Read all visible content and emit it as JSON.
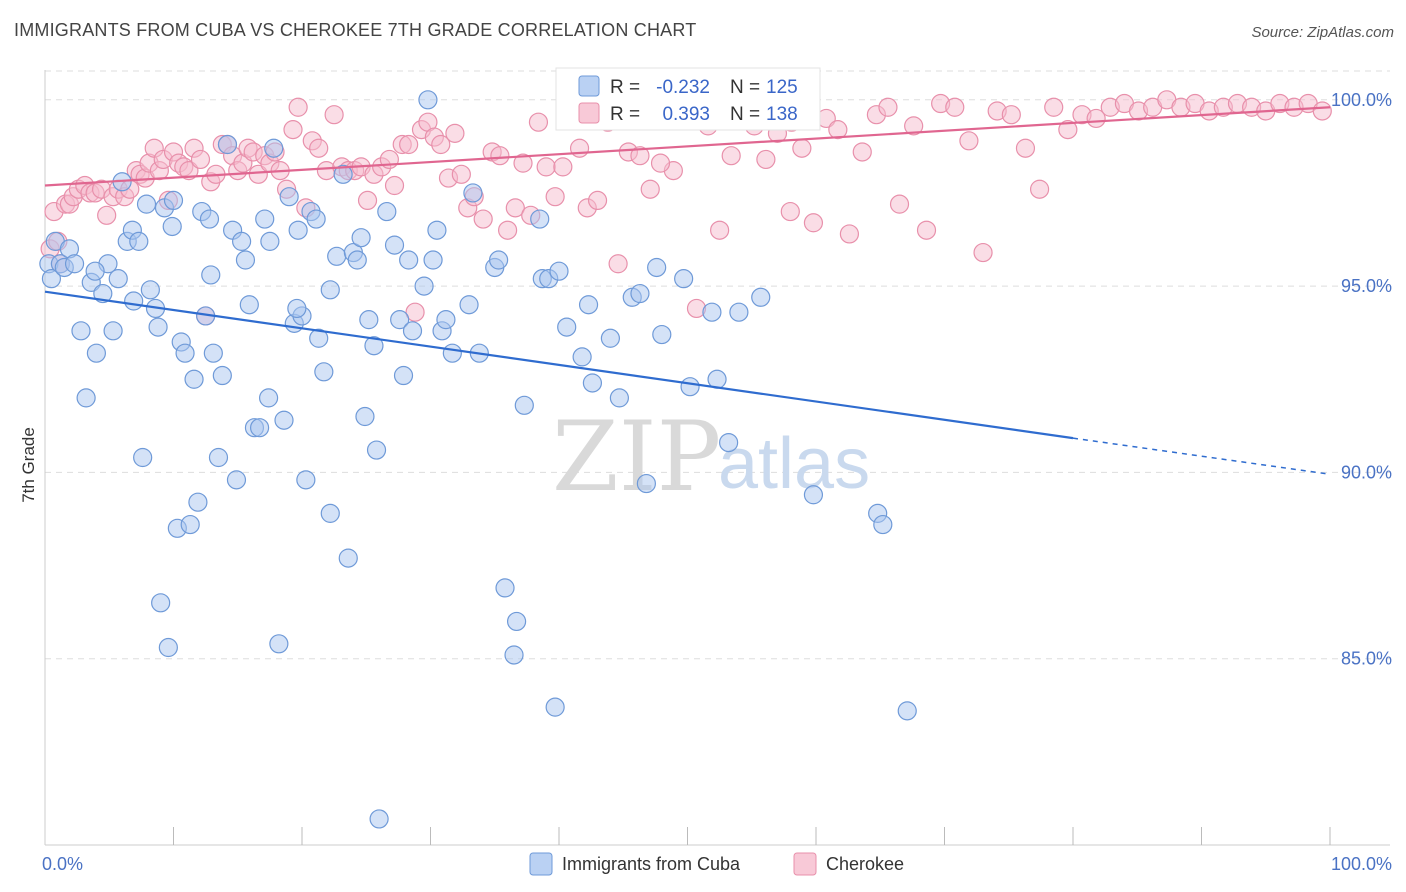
{
  "title": "IMMIGRANTS FROM CUBA VS CHEROKEE 7TH GRADE CORRELATION CHART",
  "source": "Source: ZipAtlas.com",
  "watermark": {
    "zip": "ZIP",
    "atlas": "atlas"
  },
  "colors": {
    "cuba_fill": "#a9c6f0",
    "cuba_stroke": "#6f9ad8",
    "cuba_line": "#2f6ccf",
    "cherokee_fill": "#f6bccd",
    "cherokee_stroke": "#e890ab",
    "cherokee_line": "#e06690",
    "grid": "#dddddd",
    "tick_text": "#4a72c4"
  },
  "chart_data": {
    "type": "scatter",
    "title": "IMMIGRANTS FROM CUBA VS CHEROKEE 7TH GRADE CORRELATION CHART",
    "xlabel": "",
    "ylabel": "7th Grade",
    "xlim": [
      0,
      100
    ],
    "ylim": [
      80,
      100.8
    ],
    "x_tick_labels": [
      "0.0%",
      "100.0%"
    ],
    "y_ticks": [
      85,
      90,
      95,
      100
    ],
    "y_tick_labels": [
      "85.0%",
      "90.0%",
      "95.0%",
      "100.0%"
    ],
    "grid": true,
    "legend_position": "bottom",
    "stats": [
      {
        "r_label": "R =",
        "r": "-0.232",
        "n_label": "N =",
        "n": "125"
      },
      {
        "r_label": "R =",
        "r": "0.393",
        "n_label": "N =",
        "n": "138"
      }
    ],
    "series": [
      {
        "name": "Immigrants from Cuba",
        "trend": {
          "x0": 0,
          "y0": 94.85,
          "x1": 80,
          "y1": 90.92,
          "dashed_to_x": 100,
          "dashed_y1": 89.95
        },
        "points": [
          [
            0.3,
            95.6
          ],
          [
            0.5,
            95.2
          ],
          [
            0.8,
            96.2
          ],
          [
            1.2,
            95.6
          ],
          [
            1.5,
            95.5
          ],
          [
            1.9,
            96
          ],
          [
            2.3,
            95.6
          ],
          [
            2.8,
            93.8
          ],
          [
            3.2,
            92
          ],
          [
            3.6,
            95.1
          ],
          [
            4,
            93.2
          ],
          [
            4.5,
            94.8
          ],
          [
            4.9,
            95.6
          ],
          [
            5.3,
            93.8
          ],
          [
            5.7,
            95.2
          ],
          [
            6,
            97.8
          ],
          [
            6.4,
            96.2
          ],
          [
            6.8,
            96.5
          ],
          [
            7.3,
            96.2
          ],
          [
            7.6,
            90.4
          ],
          [
            7.9,
            97.2
          ],
          [
            8.2,
            94.9
          ],
          [
            8.6,
            94.4
          ],
          [
            9,
            86.5
          ],
          [
            9.3,
            97.1
          ],
          [
            9.6,
            85.3
          ],
          [
            10,
            97.3
          ],
          [
            10.3,
            88.5
          ],
          [
            10.6,
            93.5
          ],
          [
            10.9,
            93.2
          ],
          [
            11.3,
            88.6
          ],
          [
            11.6,
            92.5
          ],
          [
            11.9,
            89.2
          ],
          [
            12.2,
            97
          ],
          [
            12.5,
            94.2
          ],
          [
            12.8,
            96.8
          ],
          [
            13.1,
            93.2
          ],
          [
            13.5,
            90.4
          ],
          [
            13.8,
            92.6
          ],
          [
            14.2,
            98.8
          ],
          [
            14.6,
            96.5
          ],
          [
            14.9,
            89.8
          ],
          [
            15.3,
            96.2
          ],
          [
            15.6,
            95.7
          ],
          [
            15.9,
            94.5
          ],
          [
            16.3,
            91.2
          ],
          [
            16.7,
            91.2
          ],
          [
            17.1,
            96.8
          ],
          [
            17.4,
            92
          ],
          [
            17.8,
            98.7
          ],
          [
            18.2,
            85.4
          ],
          [
            18.6,
            91.4
          ],
          [
            19,
            97.4
          ],
          [
            19.4,
            94
          ],
          [
            19.7,
            96.5
          ],
          [
            20,
            94.2
          ],
          [
            20.3,
            89.8
          ],
          [
            20.7,
            97
          ],
          [
            21.1,
            96.8
          ],
          [
            21.7,
            92.7
          ],
          [
            22.2,
            88.9
          ],
          [
            22.7,
            95.8
          ],
          [
            23.2,
            98
          ],
          [
            23.6,
            87.7
          ],
          [
            24,
            95.9
          ],
          [
            24.3,
            95.7
          ],
          [
            24.6,
            96.3
          ],
          [
            24.9,
            91.5
          ],
          [
            25.2,
            94.1
          ],
          [
            25.8,
            90.6
          ],
          [
            26,
            80.7
          ],
          [
            26.6,
            97
          ],
          [
            27.6,
            94.1
          ],
          [
            27.9,
            92.6
          ],
          [
            28.3,
            95.7
          ],
          [
            28.6,
            93.8
          ],
          [
            29.5,
            95
          ],
          [
            29.8,
            100
          ],
          [
            30.2,
            95.7
          ],
          [
            30.5,
            96.5
          ],
          [
            30.9,
            93.8
          ],
          [
            31.2,
            94.1
          ],
          [
            31.7,
            93.2
          ],
          [
            33.3,
            97.5
          ],
          [
            33.8,
            93.2
          ],
          [
            35,
            95.5
          ],
          [
            35.3,
            95.7
          ],
          [
            35.8,
            86.9
          ],
          [
            36.5,
            85.1
          ],
          [
            36.7,
            86
          ],
          [
            38.5,
            96.8
          ],
          [
            38.7,
            95.2
          ],
          [
            39.2,
            95.2
          ],
          [
            39.7,
            83.7
          ],
          [
            40,
            95.4
          ],
          [
            40.6,
            93.9
          ],
          [
            41.8,
            93.1
          ],
          [
            42.3,
            94.5
          ],
          [
            42.6,
            92.4
          ],
          [
            44,
            93.6
          ],
          [
            45.7,
            94.7
          ],
          [
            46.3,
            94.8
          ],
          [
            46.8,
            89.7
          ],
          [
            47.6,
            95.5
          ],
          [
            48,
            93.7
          ],
          [
            49.7,
            95.2
          ],
          [
            50.2,
            92.3
          ],
          [
            51.9,
            94.3
          ],
          [
            52.3,
            92.5
          ],
          [
            53.2,
            90.8
          ],
          [
            54,
            94.3
          ],
          [
            55.7,
            94.7
          ],
          [
            59.8,
            89.4
          ],
          [
            64.8,
            88.9
          ],
          [
            65.2,
            88.6
          ],
          [
            67.1,
            83.6
          ],
          [
            17.5,
            96.2
          ],
          [
            19.6,
            94.4
          ],
          [
            12.9,
            95.3
          ],
          [
            21.3,
            93.6
          ],
          [
            6.9,
            94.6
          ],
          [
            8.8,
            93.9
          ],
          [
            25.6,
            93.4
          ],
          [
            33,
            94.5
          ],
          [
            37.3,
            91.8
          ],
          [
            44.7,
            92
          ],
          [
            3.9,
            95.4
          ],
          [
            22.2,
            94.9
          ],
          [
            27.2,
            96.1
          ],
          [
            9.9,
            96.6
          ]
        ]
      },
      {
        "name": "Cherokee",
        "trend": {
          "x0": 0,
          "y0": 97.7,
          "x1": 100,
          "y1": 99.8
        },
        "points": [
          [
            0.4,
            96
          ],
          [
            0.7,
            97
          ],
          [
            1,
            96.2
          ],
          [
            1.2,
            95.6
          ],
          [
            1.6,
            97.2
          ],
          [
            1.9,
            97.2
          ],
          [
            2.2,
            97.4
          ],
          [
            2.6,
            97.6
          ],
          [
            3.1,
            97.7
          ],
          [
            3.5,
            97.5
          ],
          [
            3.9,
            97.5
          ],
          [
            4.4,
            97.6
          ],
          [
            4.8,
            96.9
          ],
          [
            5.3,
            97.4
          ],
          [
            5.7,
            97.6
          ],
          [
            6.2,
            97.4
          ],
          [
            6.6,
            97.6
          ],
          [
            7.1,
            98.1
          ],
          [
            7.4,
            98
          ],
          [
            7.8,
            97.9
          ],
          [
            8.1,
            98.3
          ],
          [
            8.5,
            98.7
          ],
          [
            8.9,
            98.1
          ],
          [
            9.2,
            98.4
          ],
          [
            9.6,
            97.3
          ],
          [
            10,
            98.6
          ],
          [
            10.4,
            98.3
          ],
          [
            10.8,
            98.2
          ],
          [
            11.2,
            98.1
          ],
          [
            11.6,
            98.7
          ],
          [
            12.1,
            98.4
          ],
          [
            12.5,
            94.2
          ],
          [
            12.9,
            97.8
          ],
          [
            13.3,
            98
          ],
          [
            13.8,
            98.8
          ],
          [
            14.2,
            98.8
          ],
          [
            14.6,
            98.5
          ],
          [
            15,
            98.1
          ],
          [
            15.4,
            98.3
          ],
          [
            15.8,
            98.7
          ],
          [
            16.2,
            98.6
          ],
          [
            16.6,
            98
          ],
          [
            17.1,
            98.5
          ],
          [
            17.5,
            98.3
          ],
          [
            17.9,
            98.6
          ],
          [
            18.3,
            98.1
          ],
          [
            18.8,
            97.6
          ],
          [
            19.3,
            99.2
          ],
          [
            19.7,
            99.8
          ],
          [
            20.3,
            97.1
          ],
          [
            20.8,
            98.9
          ],
          [
            21.3,
            98.7
          ],
          [
            21.9,
            98.1
          ],
          [
            22.5,
            99.6
          ],
          [
            23.1,
            98.2
          ],
          [
            23.6,
            98.1
          ],
          [
            24.1,
            98.1
          ],
          [
            24.6,
            98.2
          ],
          [
            25.1,
            97.3
          ],
          [
            25.6,
            98
          ],
          [
            26.2,
            98.2
          ],
          [
            26.8,
            98.4
          ],
          [
            27.2,
            97.7
          ],
          [
            27.8,
            98.8
          ],
          [
            28.3,
            98.8
          ],
          [
            28.8,
            94.3
          ],
          [
            29.3,
            99.2
          ],
          [
            29.8,
            99.4
          ],
          [
            30.3,
            99
          ],
          [
            30.8,
            98.8
          ],
          [
            31.4,
            97.9
          ],
          [
            31.9,
            99.1
          ],
          [
            32.4,
            98
          ],
          [
            32.9,
            97.1
          ],
          [
            33.4,
            97.4
          ],
          [
            34.1,
            96.8
          ],
          [
            34.8,
            98.6
          ],
          [
            35.4,
            98.5
          ],
          [
            36,
            96.5
          ],
          [
            36.6,
            97.1
          ],
          [
            37.2,
            98.3
          ],
          [
            37.8,
            96.9
          ],
          [
            38.4,
            99.4
          ],
          [
            39,
            98.2
          ],
          [
            39.7,
            97.4
          ],
          [
            40.3,
            98.2
          ],
          [
            40.9,
            99.6
          ],
          [
            41.6,
            98.7
          ],
          [
            42.2,
            97.1
          ],
          [
            43,
            97.3
          ],
          [
            43.8,
            99.4
          ],
          [
            44.6,
            95.6
          ],
          [
            45.4,
            98.6
          ],
          [
            46.3,
            98.5
          ],
          [
            47.1,
            97.6
          ],
          [
            48,
            99.7
          ],
          [
            48.9,
            98.1
          ],
          [
            49.8,
            99.6
          ],
          [
            50.7,
            94.4
          ],
          [
            51.6,
            99.3
          ],
          [
            52.5,
            96.5
          ],
          [
            53.4,
            98.5
          ],
          [
            54.3,
            99.6
          ],
          [
            55.2,
            99.3
          ],
          [
            56.1,
            98.4
          ],
          [
            57,
            99.1
          ],
          [
            58,
            97
          ],
          [
            58.9,
            98.7
          ],
          [
            59.8,
            96.7
          ],
          [
            60.8,
            99.5
          ],
          [
            61.7,
            99.2
          ],
          [
            62.6,
            96.4
          ],
          [
            63.6,
            98.6
          ],
          [
            64.7,
            99.6
          ],
          [
            65.6,
            99.8
          ],
          [
            66.5,
            97.2
          ],
          [
            67.6,
            99.3
          ],
          [
            68.6,
            96.5
          ],
          [
            69.7,
            99.9
          ],
          [
            70.8,
            99.8
          ],
          [
            71.9,
            98.9
          ],
          [
            73,
            95.9
          ],
          [
            74.1,
            99.7
          ],
          [
            75.2,
            99.6
          ],
          [
            76.3,
            98.7
          ],
          [
            77.4,
            97.6
          ],
          [
            78.5,
            99.8
          ],
          [
            79.6,
            99.2
          ],
          [
            80.7,
            99.6
          ],
          [
            81.8,
            99.5
          ],
          [
            82.9,
            99.8
          ],
          [
            84,
            99.9
          ],
          [
            85.1,
            99.7
          ],
          [
            86.2,
            99.8
          ],
          [
            87.3,
            100
          ],
          [
            88.4,
            99.8
          ],
          [
            89.5,
            99.9
          ],
          [
            90.6,
            99.7
          ],
          [
            91.7,
            99.8
          ],
          [
            92.8,
            99.9
          ],
          [
            93.9,
            99.8
          ],
          [
            95,
            99.7
          ],
          [
            96.1,
            99.9
          ],
          [
            97.2,
            99.8
          ],
          [
            98.3,
            99.9
          ],
          [
            99.4,
            99.7
          ],
          [
            47.9,
            98.3
          ],
          [
            58.1,
            99.4
          ]
        ]
      }
    ]
  }
}
